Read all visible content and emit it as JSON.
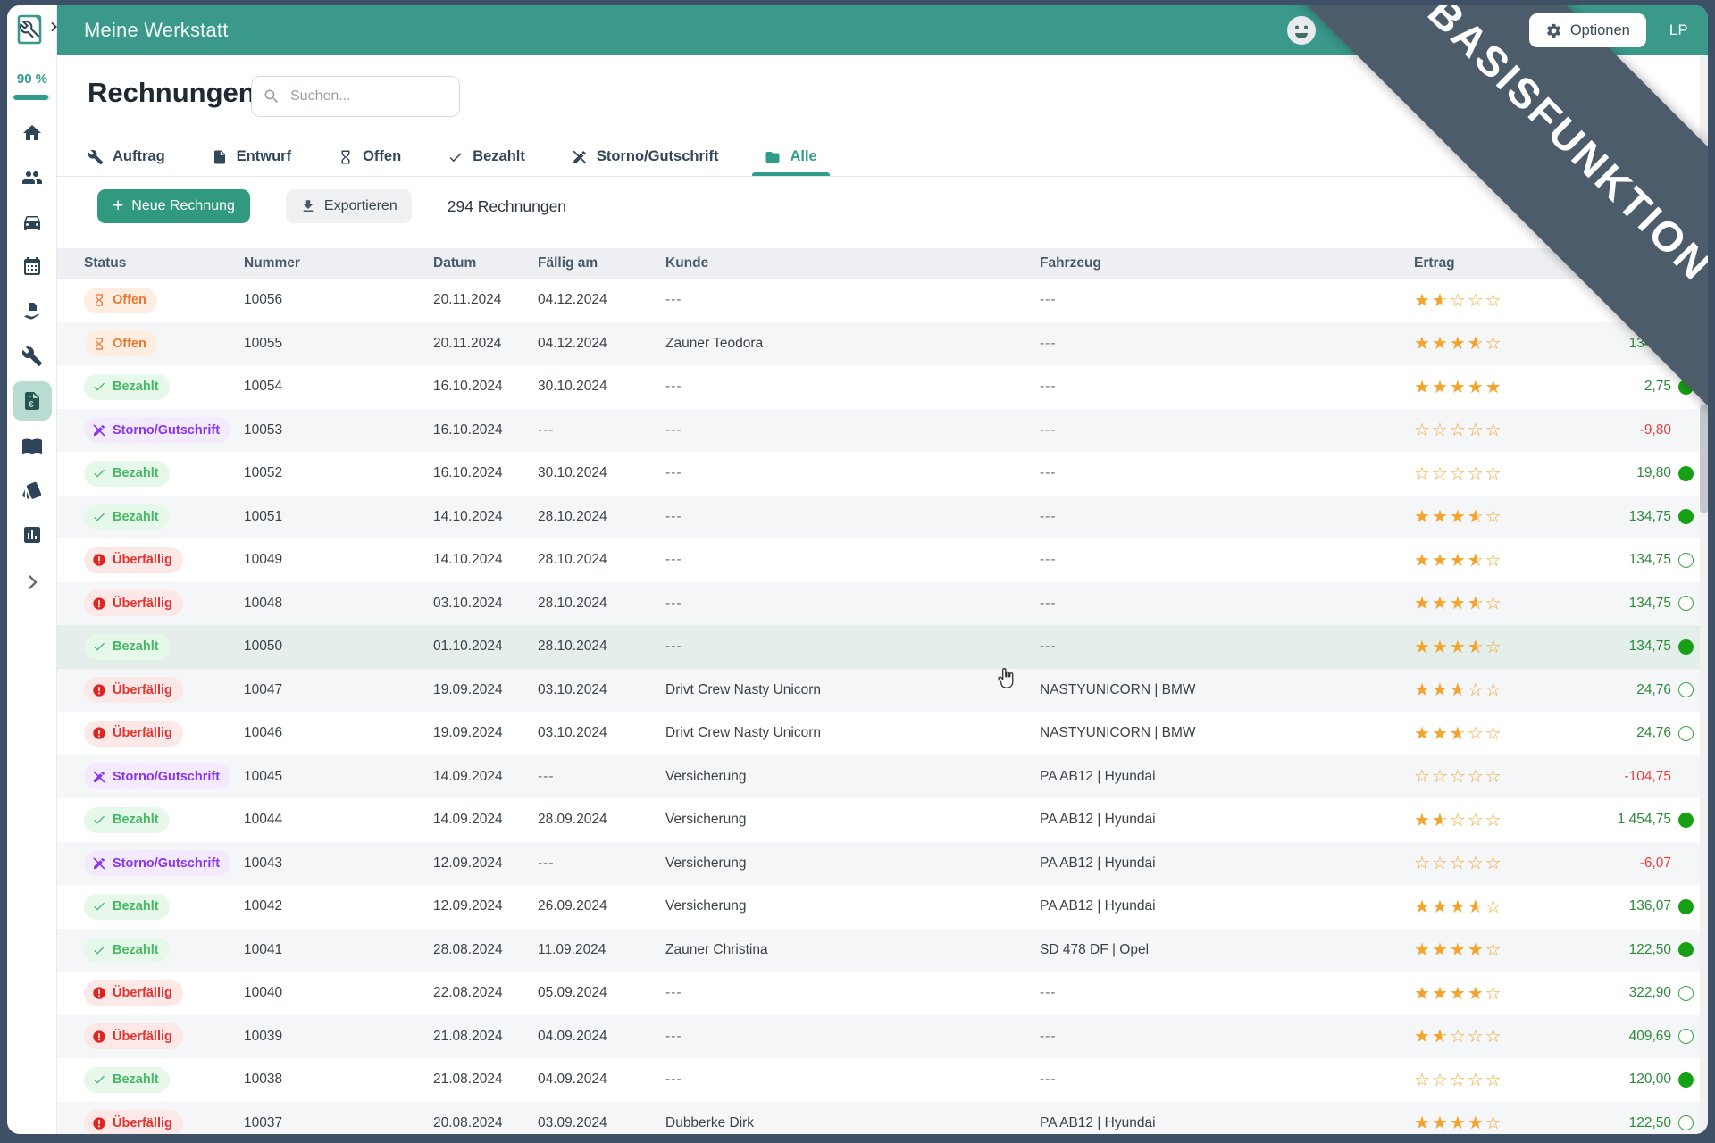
{
  "app": {
    "window_title": "Meine Werkstatt",
    "topbar": {
      "options_label": "Optionen",
      "user_initials": "LP"
    }
  },
  "banner": {
    "text": "BASISFUNKTION"
  },
  "sidebar": {
    "usage_percent": "90 %",
    "icons": [
      "workshop-logo",
      "collapse-chevron",
      "home",
      "customers",
      "vehicles",
      "calendar",
      "hand-over-document",
      "tools",
      "invoices-euro",
      "catalog-book",
      "tags",
      "statistics",
      "expand-chevron"
    ],
    "active_icon": "invoices-euro"
  },
  "page": {
    "title": "Rechnungen",
    "search_placeholder": "Suchen...",
    "actions": {
      "new_invoice": "Neue Rechnung",
      "export": "Exportieren",
      "count": "294 Rechnungen"
    }
  },
  "tabs": [
    {
      "label": "Auftrag",
      "icon": "wrench",
      "active": false
    },
    {
      "label": "Entwurf",
      "icon": "document",
      "active": false
    },
    {
      "label": "Offen",
      "icon": "hourglass",
      "active": false
    },
    {
      "label": "Bezahlt",
      "icon": "check",
      "active": false
    },
    {
      "label": "Storno/Gutschrift",
      "icon": "pen-slash",
      "active": false
    },
    {
      "label": "Alle",
      "icon": "folder",
      "active": true
    }
  ],
  "table": {
    "columns": [
      "Status",
      "Nummer",
      "Datum",
      "Fällig am",
      "Kunde",
      "Fahrzeug",
      "Ertrag"
    ],
    "rows": [
      {
        "status": "Offen",
        "type": "offen",
        "nummer": "10056",
        "datum": "20.11.2024",
        "faellig": "04.12.2024",
        "kunde": "---",
        "fahrzeug": "---",
        "stars": 1.5,
        "ertrag": "",
        "negative": false,
        "circle": "none",
        "highlight": false
      },
      {
        "status": "Offen",
        "type": "offen",
        "nummer": "10055",
        "datum": "20.11.2024",
        "faellig": "04.12.2024",
        "kunde": "Zauner Teodora",
        "fahrzeug": "---",
        "stars": 3.5,
        "ertrag": "134,75",
        "negative": false,
        "circle": "none",
        "highlight": false
      },
      {
        "status": "Bezahlt",
        "type": "bezahlt",
        "nummer": "10054",
        "datum": "16.10.2024",
        "faellig": "30.10.2024",
        "kunde": "---",
        "fahrzeug": "---",
        "stars": 5,
        "ertrag": "2,75",
        "negative": false,
        "circle": "filled",
        "highlight": false
      },
      {
        "status": "Storno/Gutschrift",
        "type": "storno",
        "nummer": "10053",
        "datum": "16.10.2024",
        "faellig": "---",
        "kunde": "---",
        "fahrzeug": "---",
        "stars": 0,
        "ertrag": "-9,80",
        "negative": true,
        "circle": "none",
        "highlight": false
      },
      {
        "status": "Bezahlt",
        "type": "bezahlt",
        "nummer": "10052",
        "datum": "16.10.2024",
        "faellig": "30.10.2024",
        "kunde": "---",
        "fahrzeug": "---",
        "stars": 0,
        "ertrag": "19,80",
        "negative": false,
        "circle": "filled",
        "highlight": false
      },
      {
        "status": "Bezahlt",
        "type": "bezahlt",
        "nummer": "10051",
        "datum": "14.10.2024",
        "faellig": "28.10.2024",
        "kunde": "---",
        "fahrzeug": "---",
        "stars": 3.5,
        "ertrag": "134,75",
        "negative": false,
        "circle": "filled",
        "highlight": false
      },
      {
        "status": "Überfällig",
        "type": "ueberfaellig",
        "nummer": "10049",
        "datum": "14.10.2024",
        "faellig": "28.10.2024",
        "kunde": "---",
        "fahrzeug": "---",
        "stars": 3.5,
        "ertrag": "134,75",
        "negative": false,
        "circle": "outline",
        "highlight": false
      },
      {
        "status": "Überfällig",
        "type": "ueberfaellig",
        "nummer": "10048",
        "datum": "03.10.2024",
        "faellig": "28.10.2024",
        "kunde": "---",
        "fahrzeug": "---",
        "stars": 3.5,
        "ertrag": "134,75",
        "negative": false,
        "circle": "outline",
        "highlight": false
      },
      {
        "status": "Bezahlt",
        "type": "bezahlt",
        "nummer": "10050",
        "datum": "01.10.2024",
        "faellig": "28.10.2024",
        "kunde": "---",
        "fahrzeug": "---",
        "stars": 3.5,
        "ertrag": "134,75",
        "negative": false,
        "circle": "filled",
        "highlight": true
      },
      {
        "status": "Überfällig",
        "type": "ueberfaellig",
        "nummer": "10047",
        "datum": "19.09.2024",
        "faellig": "03.10.2024",
        "kunde": "Drivt Crew Nasty Unicorn",
        "fahrzeug": "NASTYUNICORN | BMW",
        "stars": 2.5,
        "ertrag": "24,76",
        "negative": false,
        "circle": "outline",
        "highlight": false
      },
      {
        "status": "Überfällig",
        "type": "ueberfaellig",
        "nummer": "10046",
        "datum": "19.09.2024",
        "faellig": "03.10.2024",
        "kunde": "Drivt Crew Nasty Unicorn",
        "fahrzeug": "NASTYUNICORN | BMW",
        "stars": 2.5,
        "ertrag": "24,76",
        "negative": false,
        "circle": "outline",
        "highlight": false
      },
      {
        "status": "Storno/Gutschrift",
        "type": "storno",
        "nummer": "10045",
        "datum": "14.09.2024",
        "faellig": "---",
        "kunde": "Versicherung",
        "fahrzeug": "PA AB12 | Hyundai",
        "stars": 0,
        "ertrag": "-104,75",
        "negative": true,
        "circle": "none",
        "highlight": false
      },
      {
        "status": "Bezahlt",
        "type": "bezahlt",
        "nummer": "10044",
        "datum": "14.09.2024",
        "faellig": "28.09.2024",
        "kunde": "Versicherung",
        "fahrzeug": "PA AB12 | Hyundai",
        "stars": 1.5,
        "ertrag": "1 454,75",
        "negative": false,
        "circle": "filled",
        "highlight": false
      },
      {
        "status": "Storno/Gutschrift",
        "type": "storno",
        "nummer": "10043",
        "datum": "12.09.2024",
        "faellig": "---",
        "kunde": "Versicherung",
        "fahrzeug": "PA AB12 | Hyundai",
        "stars": 0,
        "ertrag": "-6,07",
        "negative": true,
        "circle": "none",
        "highlight": false
      },
      {
        "status": "Bezahlt",
        "type": "bezahlt",
        "nummer": "10042",
        "datum": "12.09.2024",
        "faellig": "26.09.2024",
        "kunde": "Versicherung",
        "fahrzeug": "PA AB12 | Hyundai",
        "stars": 3.5,
        "ertrag": "136,07",
        "negative": false,
        "circle": "filled",
        "highlight": false
      },
      {
        "status": "Bezahlt",
        "type": "bezahlt",
        "nummer": "10041",
        "datum": "28.08.2024",
        "faellig": "11.09.2024",
        "kunde": "Zauner Christina",
        "fahrzeug": "SD 478 DF | Opel",
        "stars": 4,
        "ertrag": "122,50",
        "negative": false,
        "circle": "filled",
        "highlight": false
      },
      {
        "status": "Überfällig",
        "type": "ueberfaellig",
        "nummer": "10040",
        "datum": "22.08.2024",
        "faellig": "05.09.2024",
        "kunde": "---",
        "fahrzeug": "---",
        "stars": 4,
        "ertrag": "322,90",
        "negative": false,
        "circle": "outline",
        "highlight": false
      },
      {
        "status": "Überfällig",
        "type": "ueberfaellig",
        "nummer": "10039",
        "datum": "21.08.2024",
        "faellig": "04.09.2024",
        "kunde": "---",
        "fahrzeug": "---",
        "stars": 1.5,
        "ertrag": "409,69",
        "negative": false,
        "circle": "outline",
        "highlight": false
      },
      {
        "status": "Bezahlt",
        "type": "bezahlt",
        "nummer": "10038",
        "datum": "21.08.2024",
        "faellig": "04.09.2024",
        "kunde": "---",
        "fahrzeug": "---",
        "stars": 0,
        "ertrag": "120,00",
        "negative": false,
        "circle": "filled",
        "highlight": false
      },
      {
        "status": "Überfällig",
        "type": "ueberfaellig",
        "nummer": "10037",
        "datum": "20.08.2024",
        "faellig": "03.09.2024",
        "kunde": "Dubberke Dirk",
        "fahrzeug": "PA AB12 | Hyundai",
        "stars": 4,
        "ertrag": "122,50",
        "negative": false,
        "circle": "outline",
        "highlight": false
      }
    ]
  },
  "colors": {
    "accent_teal": "#3a998b",
    "button_teal": "#30997e",
    "banner_slate": "#4d5c6b",
    "frame_slate": "#3e5065",
    "status_open": "#ee7430",
    "status_paid": "#47b865",
    "status_overdue": "#e23430",
    "status_storno": "#8a36f0",
    "star_orange": "#f4a42c",
    "value_positive": "#2f8a3a",
    "value_negative": "#e8403a",
    "paid_circle": "#17a016"
  }
}
